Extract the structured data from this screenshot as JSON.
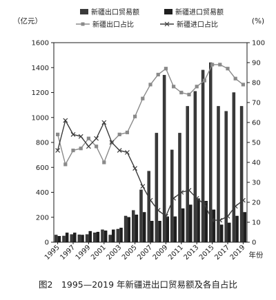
{
  "chart_data": {
    "type": "bar",
    "caption": "图2　1995—2019 年新疆进出口贸易额及各自占比",
    "ylabel_left": "（亿元）",
    "ylabel_right": "(%)",
    "xlabel": "年份",
    "ylim_left": [
      0,
      1600
    ],
    "ylim_right": [
      0,
      100
    ],
    "yticks_left": [
      "0",
      "200",
      "400",
      "600",
      "800",
      "1000",
      "1200",
      "1400",
      "1600"
    ],
    "yticks_right": [
      "0",
      "10",
      "20",
      "30",
      "40",
      "50",
      "60",
      "70",
      "80",
      "90",
      "100"
    ],
    "x_tick_labels": [
      "1995",
      "1997",
      "1999",
      "2001",
      "2003",
      "2005",
      "2007",
      "2009",
      "2011",
      "2013",
      "2015",
      "2017",
      "2019"
    ],
    "categories": [
      "1995",
      "1996",
      "1997",
      "1998",
      "1999",
      "2000",
      "2001",
      "2002",
      "2003",
      "2004",
      "2005",
      "2006",
      "2007",
      "2008",
      "2009",
      "2010",
      "2011",
      "2012",
      "2013",
      "2014",
      "2015",
      "2016",
      "2017",
      "2018",
      "2019"
    ],
    "bar_series": [
      {
        "name": "新疆出口贸易额",
        "axis": "left",
        "color": "#3a3a3a",
        "values": [
          58,
          50,
          62,
          60,
          62,
          76,
          100,
          58,
          105,
          210,
          255,
          420,
          570,
          875,
          1340,
          740,
          875,
          1090,
          1210,
          1380,
          1440,
          1090,
          1050,
          1200,
          1090
        ]
      },
      {
        "name": "新疆进口贸易额",
        "axis": "left",
        "color": "#1f1f1f",
        "values": [
          48,
          75,
          75,
          58,
          88,
          82,
          92,
          100,
          115,
          200,
          220,
          240,
          170,
          170,
          205,
          205,
          270,
          300,
          350,
          330,
          260,
          140,
          155,
          210,
          240
        ]
      }
    ],
    "line_series": [
      {
        "name": "新疆出口占比",
        "axis": "right",
        "marker": "square",
        "color": "#8a8a8a",
        "values": [
          54,
          39,
          46,
          47,
          52,
          48,
          40,
          50,
          54,
          55,
          63,
          72,
          79,
          84,
          87,
          78,
          75,
          74,
          78,
          81,
          89,
          89,
          87,
          82,
          79
        ]
      },
      {
        "name": "新疆进口占比",
        "axis": "right",
        "marker": "x",
        "color": "#3a3a3a",
        "values": [
          46,
          61,
          54,
          53,
          48,
          52,
          60,
          50,
          46,
          45,
          37,
          28,
          21,
          16,
          13,
          22,
          25,
          26,
          22,
          19,
          11,
          11,
          13,
          18,
          21
        ]
      }
    ],
    "legend_placement": "top"
  }
}
